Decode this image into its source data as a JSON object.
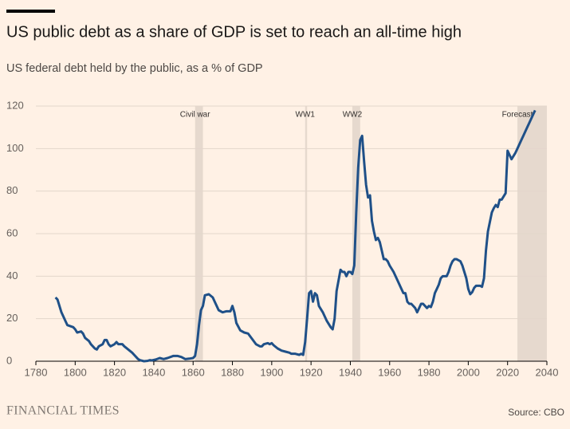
{
  "chart_data": {
    "type": "line",
    "title": "US public debt as a share of GDP is set to reach an all-time high",
    "subtitle": "US federal debt held by the public, as a % of GDP",
    "source": "Source: CBO",
    "brand": "FINANCIAL TIMES",
    "xlim": [
      1780,
      2040
    ],
    "xticks": [
      1780,
      1800,
      1820,
      1840,
      1860,
      1880,
      1900,
      1920,
      1940,
      1960,
      1980,
      2000,
      2020,
      2040
    ],
    "ylim": [
      0,
      120
    ],
    "yticks": [
      0,
      20,
      40,
      60,
      80,
      100,
      120
    ],
    "grid": true,
    "shaded_periods": [
      {
        "label": "Civil war",
        "start": 1861,
        "end": 1865
      },
      {
        "label": "WW1",
        "start": 1917,
        "end": 1918
      },
      {
        "label": "WW2",
        "start": 1941,
        "end": 1945
      },
      {
        "label": "Forecast",
        "start": 2025,
        "end": 2040
      }
    ],
    "series": [
      {
        "color": "#1f5088",
        "x": [
          1790,
          1791,
          1793,
          1795,
          1796,
          1799,
          1800,
          1801,
          1803,
          1804,
          1805,
          1807,
          1808,
          1810,
          1811,
          1812,
          1814,
          1815,
          1816,
          1817,
          1818,
          1820,
          1821,
          1822,
          1824,
          1825,
          1827,
          1829,
          1830,
          1832,
          1833,
          1835,
          1837,
          1838,
          1839,
          1841,
          1843,
          1845,
          1847,
          1850,
          1852,
          1854,
          1856,
          1858,
          1860,
          1861,
          1862,
          1863,
          1864,
          1865,
          1866,
          1868,
          1870,
          1871,
          1873,
          1875,
          1877,
          1879,
          1880,
          1881,
          1882,
          1884,
          1886,
          1888,
          1890,
          1892,
          1894,
          1895,
          1896,
          1898,
          1899,
          1900,
          1901,
          1903,
          1905,
          1907,
          1909,
          1910,
          1912,
          1914,
          1915,
          1916,
          1917,
          1918,
          1919,
          1920,
          1921,
          1922,
          1923,
          1924,
          1926,
          1928,
          1930,
          1931,
          1932,
          1933,
          1934,
          1935,
          1936,
          1937,
          1938,
          1939,
          1940,
          1941,
          1942,
          1943,
          1944,
          1945,
          1946,
          1947,
          1948,
          1949,
          1950,
          1951,
          1952,
          1953,
          1954,
          1955,
          1956,
          1957,
          1958,
          1959,
          1960,
          1962,
          1964,
          1966,
          1967,
          1968,
          1969,
          1970,
          1971,
          1972,
          1973,
          1974,
          1975,
          1976,
          1977,
          1979,
          1980,
          1981,
          1982,
          1983,
          1984,
          1985,
          1986,
          1987,
          1988,
          1989,
          1990,
          1991,
          1992,
          1993,
          1994,
          1995,
          1996,
          1997,
          1998,
          1999,
          2000,
          2001,
          2002,
          2003,
          2004,
          2005,
          2006,
          2007,
          2008,
          2009,
          2010,
          2011,
          2012,
          2013,
          2014,
          2015,
          2016,
          2017,
          2018,
          2019,
          2020,
          2021,
          2022,
          2023,
          2024,
          2025,
          2026,
          2027,
          2028,
          2029,
          2030,
          2031,
          2032,
          2033,
          2034
        ],
        "values": [
          30,
          29,
          23,
          19,
          17,
          16,
          15,
          13.5,
          14,
          13,
          11,
          9.5,
          8,
          6,
          5.5,
          7,
          8,
          10,
          10,
          8,
          7,
          8,
          9,
          8,
          8,
          7,
          5.5,
          4,
          3,
          1,
          0.5,
          0,
          0.2,
          0.5,
          0.4,
          0.8,
          1.5,
          1,
          1.5,
          2.5,
          2.5,
          2,
          1,
          1.2,
          1.5,
          2.5,
          8,
          17,
          24,
          26,
          31,
          31.5,
          30,
          28,
          24,
          23,
          23.5,
          23.5,
          26,
          23,
          18,
          14.5,
          13.5,
          13,
          10.5,
          8,
          7,
          7,
          8,
          8.5,
          8,
          8.5,
          7.5,
          6,
          5,
          4.5,
          4,
          3.5,
          3.5,
          3,
          3.5,
          3,
          9,
          20,
          32,
          33,
          28,
          32,
          31,
          26,
          23,
          19,
          16,
          15,
          20,
          33,
          38,
          43,
          42,
          42,
          40,
          42,
          42,
          41,
          45,
          70,
          91,
          104,
          106,
          94,
          83,
          77,
          78,
          66,
          61,
          57,
          58,
          56,
          52,
          48,
          48,
          47,
          45,
          42,
          38,
          34,
          32,
          32,
          28,
          27,
          27,
          26,
          25,
          23,
          25,
          27,
          27,
          25,
          26,
          25.5,
          28,
          32,
          34,
          36,
          39,
          40,
          40,
          40,
          42,
          45,
          47,
          48,
          48,
          47.5,
          47,
          45,
          42,
          39,
          34,
          31.5,
          32.5,
          34.5,
          35.5,
          35.5,
          35.5,
          35,
          39,
          52,
          61,
          65.5,
          70,
          72,
          73.5,
          72.5,
          76,
          76,
          77.5,
          79,
          99,
          97,
          95,
          96.5,
          98,
          100,
          102,
          104,
          106,
          108,
          110,
          112,
          114,
          116,
          118
        ]
      }
    ]
  }
}
